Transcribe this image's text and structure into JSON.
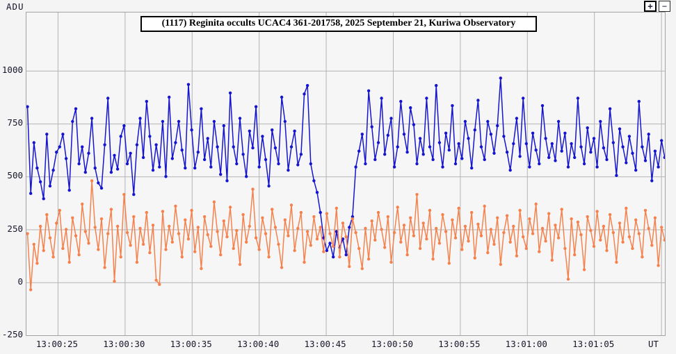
{
  "window_labels": {
    "y_axis_unit": "ADU",
    "x_axis_unit": "UT"
  },
  "toolbar": {
    "zoom_in_label": "+",
    "zoom_out_label": "−"
  },
  "title": "(1117) Reginita occults UCAC4 361-201758, 2025 September 21, Kuriwa Observatory",
  "colors": {
    "blue_series": "#1515d0",
    "orange_series": "#f5824c",
    "grid": "#b4b4b4",
    "plot_border": "#a2a2a2",
    "axis_text": "#16162a",
    "background": "#f4f4f5",
    "title_border": "#000000"
  },
  "chart_data": {
    "type": "line",
    "title": "(1117) Reginita occults UCAC4 361-201758, 2025 September 21, Kuriwa Observatory",
    "xlabel": "UT",
    "ylabel": "ADU",
    "grid": true,
    "legend": "none",
    "ylim": [
      -250,
      1275
    ],
    "xlim_seconds_after_13h": [
      22.67,
      70.28
    ],
    "y_ticks": [
      {
        "value": -250,
        "label": "-250"
      },
      {
        "value": 0,
        "label": "0"
      },
      {
        "value": 250,
        "label": "250"
      },
      {
        "value": 500,
        "label": "500"
      },
      {
        "value": 750,
        "label": "750"
      },
      {
        "value": 1000,
        "label": "1000"
      }
    ],
    "x_ticks": [
      {
        "t": 25,
        "label": "13:00:25"
      },
      {
        "t": 30,
        "label": "13:00:30"
      },
      {
        "t": 35,
        "label": "13:00:35"
      },
      {
        "t": 40,
        "label": "13:00:40"
      },
      {
        "t": 45,
        "label": "13:00:45"
      },
      {
        "t": 50,
        "label": "13:00:50"
      },
      {
        "t": 55,
        "label": "13:00:55"
      },
      {
        "t": 60,
        "label": "13:01:00"
      },
      {
        "t": 65,
        "label": "13:01:05"
      },
      {
        "t": 70,
        "label": ""
      }
    ],
    "occultation_dip": {
      "start_t": 44.6,
      "end_t": 47.0,
      "note_series": "blue drops to background level"
    },
    "series": [
      {
        "name": "series-blue-target-star",
        "color": "#1515d0",
        "t_start": 22.75,
        "dt": 0.24,
        "values": [
          830,
          420,
          660,
          540,
          475,
          395,
          700,
          455,
          530,
          615,
          640,
          700,
          585,
          435,
          760,
          820,
          560,
          640,
          520,
          610,
          775,
          540,
          470,
          445,
          650,
          870,
          520,
          600,
          535,
          690,
          740,
          560,
          610,
          415,
          650,
          775,
          590,
          855,
          690,
          530,
          650,
          545,
          760,
          500,
          875,
          585,
          660,
          760,
          625,
          540,
          935,
          720,
          540,
          615,
          820,
          580,
          680,
          545,
          760,
          640,
          510,
          740,
          480,
          895,
          640,
          560,
          775,
          605,
          500,
          715,
          635,
          830,
          545,
          690,
          580,
          455,
          720,
          635,
          560,
          875,
          760,
          530,
          640,
          715,
          555,
          605,
          890,
          930,
          560,
          480,
          425,
          330,
          210,
          150,
          185,
          120,
          240,
          165,
          205,
          130,
          260,
          310,
          545,
          620,
          700,
          560,
          905,
          735,
          580,
          660,
          870,
          605,
          695,
          775,
          545,
          640,
          855,
          700,
          615,
          825,
          745,
          560,
          680,
          605,
          870,
          640,
          580,
          930,
          660,
          545,
          705,
          625,
          835,
          560,
          655,
          585,
          760,
          680,
          540,
          720,
          860,
          640,
          580,
          760,
          700,
          610,
          740,
          965,
          690,
          615,
          530,
          655,
          775,
          595,
          870,
          655,
          545,
          705,
          625,
          560,
          835,
          680,
          590,
          655,
          575,
          760,
          620,
          705,
          545,
          655,
          590,
          870,
          640,
          560,
          730,
          615,
          680,
          545,
          760,
          635,
          580,
          820,
          660,
          505,
          725,
          640,
          565,
          690,
          610,
          530,
          855,
          640,
          575,
          700,
          480,
          620,
          545,
          670,
          590
        ]
      },
      {
        "name": "series-orange-background",
        "color": "#f5824c",
        "t_start": 22.75,
        "dt": 0.24,
        "values": [
          230,
          -35,
          180,
          90,
          265,
          150,
          320,
          210,
          120,
          280,
          340,
          160,
          250,
          95,
          305,
          220,
          130,
          370,
          240,
          185,
          480,
          260,
          155,
          300,
          70,
          230,
          345,
          5,
          265,
          120,
          415,
          235,
          175,
          310,
          95,
          255,
          180,
          330,
          140,
          270,
          10,
          -10,
          335,
          155,
          265,
          190,
          360,
          230,
          120,
          295,
          205,
          340,
          145,
          260,
          65,
          310,
          225,
          170,
          380,
          240,
          130,
          290,
          215,
          355,
          160,
          245,
          85,
          320,
          190,
          265,
          440,
          210,
          155,
          305,
          230,
          120,
          345,
          260,
          180,
          70,
          295,
          220,
          365,
          150,
          255,
          330,
          95,
          240,
          175,
          310,
          205,
          260,
          145,
          325,
          230,
          170,
          350,
          120,
          280,
          215,
          75,
          300,
          235,
          160,
          65,
          255,
          110,
          290,
          200,
          330,
          250,
          165,
          310,
          95,
          235,
          355,
          190,
          270,
          130,
          305,
          220,
          415,
          160,
          280,
          205,
          340,
          110,
          255,
          185,
          320,
          240,
          90,
          295,
          210,
          350,
          155,
          265,
          195,
          330,
          115,
          275,
          220,
          360,
          140,
          250,
          180,
          305,
          85,
          235,
          315,
          190,
          265,
          125,
          340,
          215,
          160,
          300,
          230,
          370,
          145,
          255,
          195,
          325,
          105,
          270,
          210,
          345,
          160,
          15,
          300,
          130,
          285,
          225,
          60,
          310,
          245,
          170,
          335,
          200,
          265,
          150,
          320,
          235,
          95,
          280,
          190,
          350,
          215,
          160,
          295,
          230,
          120,
          340,
          255,
          175,
          305,
          80,
          260,
          200
        ]
      }
    ]
  }
}
